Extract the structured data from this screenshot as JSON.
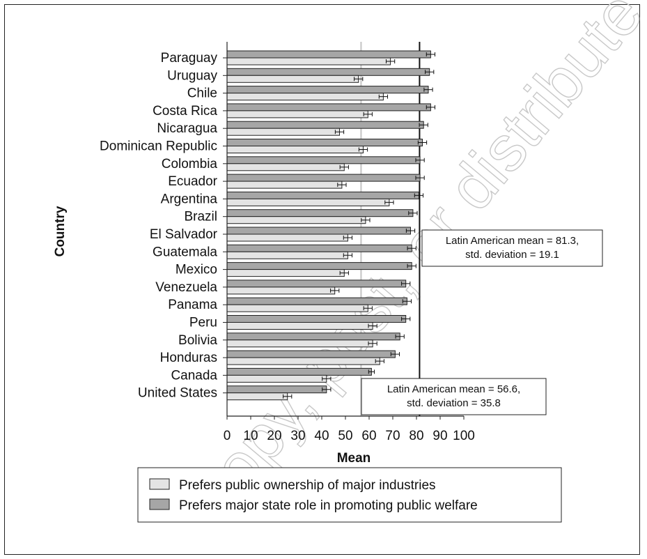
{
  "chart_data": {
    "type": "bar",
    "orientation": "horizontal",
    "ylabel": "Country",
    "xlabel": "Mean",
    "xlim": [
      0,
      100
    ],
    "x_ticks": [
      "0",
      "10",
      "20",
      "30",
      "40",
      "50",
      "60",
      "70",
      "80",
      "90",
      "100"
    ],
    "categories": [
      "Paraguay",
      "Uruguay",
      "Chile",
      "Costa Rica",
      "Nicaragua",
      "Dominican Republic",
      "Colombia",
      "Ecuador",
      "Argentina",
      "Brazil",
      "El Salvador",
      "Guatemala",
      "Mexico",
      "Venezuela",
      "Panama",
      "Peru",
      "Bolivia",
      "Honduras",
      "Canada",
      "United States"
    ],
    "series": [
      {
        "name": "Prefers major state role in promoting public welfare",
        "color": "#a6a6a6",
        "values": [
          86,
          85.5,
          85,
          86,
          83,
          82.5,
          81.5,
          81.5,
          81,
          78.5,
          77.5,
          78,
          78,
          75.5,
          76,
          75.5,
          73,
          71,
          61,
          42
        ],
        "errors": [
          1.8,
          1.8,
          1.8,
          1.8,
          1.8,
          1.8,
          1.8,
          1.8,
          1.8,
          1.8,
          1.8,
          1.8,
          1.8,
          1.8,
          1.8,
          1.8,
          1.8,
          1.8,
          1.2,
          1.8
        ]
      },
      {
        "name": "Prefers public ownership of major industries",
        "color": "#e4e4e4",
        "values": [
          69,
          55.5,
          66,
          59.5,
          47.5,
          57.5,
          49.5,
          48.5,
          68.5,
          58.5,
          51,
          51,
          49.5,
          45.5,
          59.5,
          61.5,
          61.5,
          64.5,
          42,
          25.5
        ],
        "errors": [
          1.8,
          1.8,
          1.8,
          1.8,
          1.8,
          1.8,
          1.8,
          1.8,
          1.8,
          1.8,
          1.8,
          1.8,
          1.8,
          1.8,
          1.8,
          1.8,
          1.8,
          1.8,
          1.8,
          1.8
        ]
      }
    ],
    "reference_lines": [
      {
        "value": 81.3,
        "color": "#111111",
        "label": "Latin American mean = 81.3, std. deviation = 19.1",
        "label_lines": [
          "Latin American mean = 81.3,",
          "std. deviation = 19.1"
        ]
      },
      {
        "value": 56.6,
        "color": "#c8c8c8",
        "label": "Latin American mean = 56.6, std. deviation = 35.8",
        "label_lines": [
          "Latin American mean = 56.6,",
          "std. deviation = 35.8"
        ]
      }
    ],
    "legend": {
      "position": "bottom",
      "entries": [
        {
          "label": "Prefers public ownership of major industries",
          "color": "#e4e4e4"
        },
        {
          "label": "Prefers major state role in promoting public welfare",
          "color": "#a6a6a6"
        }
      ]
    },
    "grid": false
  },
  "watermark": {
    "text": "copy, post, or distribute",
    "color": "#c8c8c8"
  }
}
